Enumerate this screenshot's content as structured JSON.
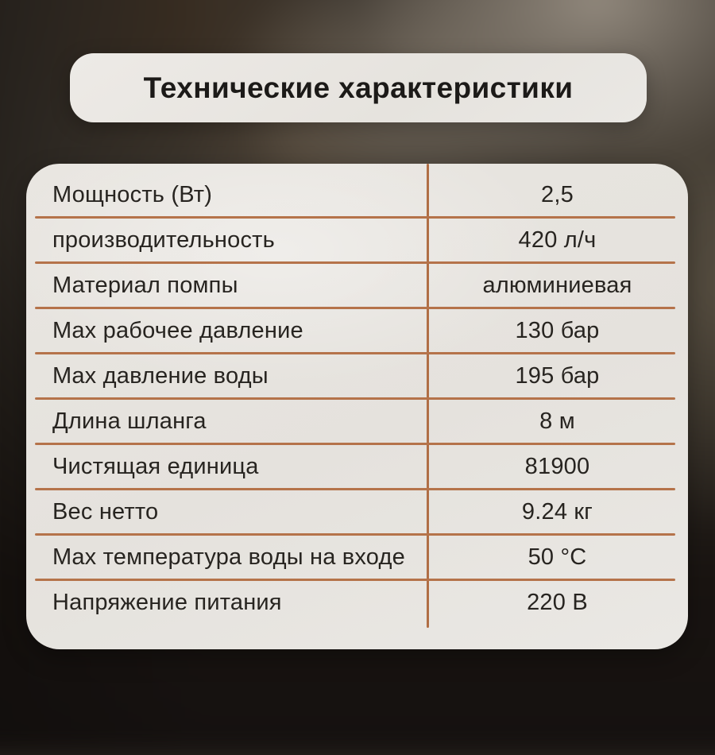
{
  "header": {
    "title": "Технические характеристики"
  },
  "table": {
    "rows": [
      {
        "label": "Мощность (Вт)",
        "value": "2,5"
      },
      {
        "label": "производительность",
        "value": "420 л/ч"
      },
      {
        "label": "Материал помпы",
        "value": "алюминиевая"
      },
      {
        "label": "Max рабочее давление",
        "value": "130 бар"
      },
      {
        "label": "Max давление воды",
        "value": "195 бар"
      },
      {
        "label": "Длина шланга",
        "value": "8 м"
      },
      {
        "label": "Чистящая единица",
        "value": "81900"
      },
      {
        "label": "Вес нетто",
        "value": "9.24 кг"
      },
      {
        "label": "Max температура воды на входе",
        "value": "50 °C"
      },
      {
        "label": "Напряжение питания",
        "value": "220 В"
      }
    ]
  },
  "colors": {
    "divider": "#b5734a",
    "card_background": "#e7e4df",
    "text": "#272420"
  }
}
